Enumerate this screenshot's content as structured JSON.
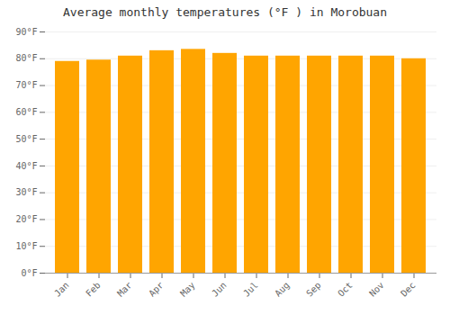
{
  "chart_data": {
    "type": "bar",
    "title": "Average monthly temperatures (°F ) in Morobuan",
    "categories": [
      "Jan",
      "Feb",
      "Mar",
      "Apr",
      "May",
      "Jun",
      "Jul",
      "Aug",
      "Sep",
      "Oct",
      "Nov",
      "Dec"
    ],
    "values": [
      79,
      79.5,
      81,
      83,
      83.5,
      82,
      81,
      81,
      81,
      81,
      81,
      80
    ],
    "color": "#FFA500",
    "ylim": [
      0,
      90
    ],
    "yticks": [
      {
        "value": 0,
        "label": "0°F"
      },
      {
        "value": 10,
        "label": "10°F"
      },
      {
        "value": 20,
        "label": "20°F"
      },
      {
        "value": 30,
        "label": "30°F"
      },
      {
        "value": 40,
        "label": "40°F"
      },
      {
        "value": 50,
        "label": "50°F"
      },
      {
        "value": 60,
        "label": "60°F"
      },
      {
        "value": 70,
        "label": "70°F"
      },
      {
        "value": 80,
        "label": "80°F"
      },
      {
        "value": 90,
        "label": "90°F"
      }
    ],
    "grid": true
  }
}
